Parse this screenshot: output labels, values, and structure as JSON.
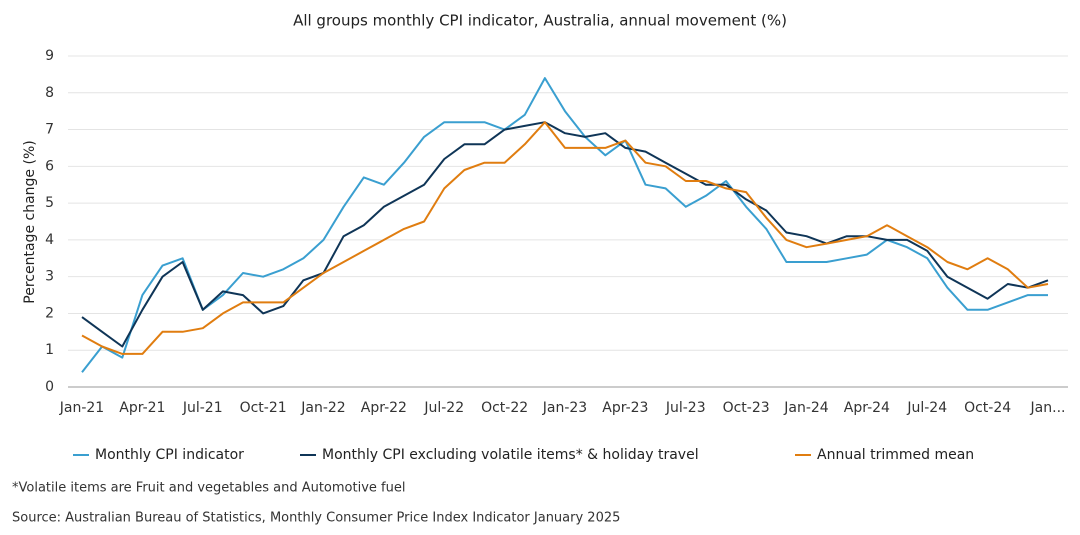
{
  "chart_data": {
    "type": "line",
    "title": "All groups monthly CPI indicator, Australia, annual movement (%)",
    "y_label": "Percentage change (%)",
    "categories": [
      "Jan-21",
      null,
      null,
      "Apr-21",
      null,
      null,
      "Jul-21",
      null,
      null,
      "Oct-21",
      null,
      null,
      "Jan-22",
      null,
      null,
      "Apr-22",
      null,
      null,
      "Jul-22",
      null,
      null,
      "Oct-22",
      null,
      null,
      "Jan-23",
      null,
      null,
      "Apr-23",
      null,
      null,
      "Jul-23",
      null,
      null,
      "Oct-23",
      null,
      null,
      "Jan-24",
      null,
      null,
      "Apr-24",
      null,
      null,
      "Jul-24",
      null,
      null,
      "Oct-24",
      null,
      null,
      "Jan..."
    ],
    "series": [
      {
        "name": "Monthly CPI indicator",
        "color": "#3a9fd0",
        "values": [
          0.4,
          1.1,
          0.8,
          2.5,
          3.3,
          3.5,
          2.1,
          2.5,
          3.1,
          3.0,
          3.2,
          3.5,
          4.0,
          4.9,
          5.7,
          5.5,
          6.1,
          6.8,
          7.2,
          7.2,
          7.2,
          7.0,
          7.4,
          8.4,
          7.5,
          6.8,
          6.3,
          6.7,
          5.5,
          5.4,
          4.9,
          5.2,
          5.6,
          4.9,
          4.3,
          3.4,
          3.4,
          3.4,
          3.5,
          3.6,
          4.0,
          3.8,
          3.5,
          2.7,
          2.1,
          2.1,
          2.3,
          2.5,
          2.5
        ]
      },
      {
        "name": "Monthly CPI excluding volatile items* & holiday travel",
        "color": "#0f3557",
        "values": [
          1.9,
          1.5,
          1.1,
          2.1,
          3.0,
          3.4,
          2.1,
          2.6,
          2.5,
          2.0,
          2.2,
          2.9,
          3.1,
          4.1,
          4.4,
          4.9,
          5.2,
          5.5,
          6.2,
          6.6,
          6.6,
          7.0,
          7.1,
          7.2,
          6.9,
          6.8,
          6.9,
          6.5,
          6.4,
          6.1,
          5.8,
          5.5,
          5.5,
          5.1,
          4.8,
          4.2,
          4.1,
          3.9,
          4.1,
          4.1,
          4.0,
          4.0,
          3.7,
          3.0,
          2.7,
          2.4,
          2.8,
          2.7,
          2.9
        ]
      },
      {
        "name": "Annual trimmed mean",
        "color": "#e07d10",
        "values": [
          1.4,
          1.1,
          0.9,
          0.9,
          1.5,
          1.5,
          1.6,
          2.0,
          2.3,
          2.3,
          2.3,
          2.7,
          3.1,
          3.4,
          3.7,
          4.0,
          4.3,
          4.5,
          5.4,
          5.9,
          6.1,
          6.1,
          6.6,
          7.2,
          6.5,
          6.5,
          6.5,
          6.7,
          6.1,
          6.0,
          5.6,
          5.6,
          5.4,
          5.3,
          4.6,
          4.0,
          3.8,
          3.9,
          4.0,
          4.1,
          4.4,
          4.1,
          3.8,
          3.4,
          3.2,
          3.5,
          3.2,
          2.7,
          2.8
        ]
      }
    ],
    "ylim": [
      0,
      9
    ],
    "yticks": [
      0,
      1,
      2,
      3,
      4,
      5,
      6,
      7,
      8,
      9
    ],
    "grid": true,
    "notes": [
      "*Volatile items are Fruit and vegetables and Automotive fuel",
      "Source: Australian Bureau of Statistics, Monthly Consumer Price Index Indicator January 2025"
    ]
  }
}
